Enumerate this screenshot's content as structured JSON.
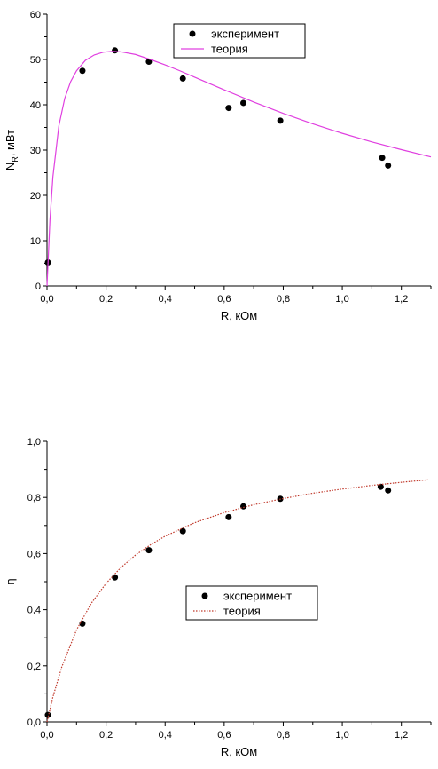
{
  "chart_data": [
    {
      "type": "scatter",
      "xlabel": "R, кОм",
      "ylabel": "N",
      "ylabel_sub": "R",
      "ylabel_unit": ", мВт",
      "xlim": [
        0,
        1.3
      ],
      "ylim": [
        0,
        60
      ],
      "xticks": [
        "0,0",
        "0,2",
        "0,4",
        "0,6",
        "0,8",
        "1,0",
        "1,2"
      ],
      "xtick_values": [
        0,
        0.2,
        0.4,
        0.6,
        0.8,
        1.0,
        1.2
      ],
      "yticks": [
        "0",
        "10",
        "20",
        "30",
        "40",
        "50",
        "60"
      ],
      "ytick_values": [
        0,
        10,
        20,
        30,
        40,
        50,
        60
      ],
      "legend_position": "top-right",
      "series": [
        {
          "name": "эксперимент",
          "kind": "scatter",
          "color": "#000000",
          "x": [
            0.003,
            0.12,
            0.23,
            0.345,
            0.46,
            0.615,
            0.665,
            0.79,
            1.135,
            1.155
          ],
          "y": [
            5.2,
            47.5,
            52.0,
            49.5,
            45.8,
            39.3,
            40.4,
            36.5,
            28.3,
            26.6
          ]
        },
        {
          "name": "теория",
          "kind": "line",
          "color": "#e040e0",
          "style": "solid",
          "x": [
            0,
            0.01,
            0.02,
            0.04,
            0.06,
            0.08,
            0.1,
            0.13,
            0.16,
            0.19,
            0.22,
            0.25,
            0.3,
            0.35,
            0.4,
            0.45,
            0.5,
            0.6,
            0.7,
            0.8,
            0.9,
            1.0,
            1.1,
            1.2,
            1.3
          ],
          "y": [
            0,
            14.6,
            24.1,
            35.3,
            41.4,
            45.1,
            47.5,
            49.8,
            51.0,
            51.6,
            51.8,
            51.7,
            51.1,
            50.0,
            48.8,
            47.5,
            46.1,
            43.3,
            40.6,
            38.1,
            35.8,
            33.7,
            31.8,
            30.1,
            28.5
          ]
        }
      ]
    },
    {
      "type": "scatter",
      "xlabel": "R, кОм",
      "ylabel": "η",
      "xlim": [
        0,
        1.3
      ],
      "ylim": [
        0,
        1.0
      ],
      "xticks": [
        "0,0",
        "0,2",
        "0,4",
        "0,6",
        "0,8",
        "1,0",
        "1,2"
      ],
      "xtick_values": [
        0,
        0.2,
        0.4,
        0.6,
        0.8,
        1.0,
        1.2
      ],
      "yticks": [
        "0,0",
        "0,2",
        "0,4",
        "0,6",
        "0,8",
        "1,0"
      ],
      "ytick_values": [
        0,
        0.2,
        0.4,
        0.6,
        0.8,
        1.0
      ],
      "legend_position": "center-right",
      "series": [
        {
          "name": "эксперимент",
          "kind": "scatter",
          "color": "#000000",
          "x": [
            0.003,
            0.12,
            0.23,
            0.345,
            0.46,
            0.615,
            0.665,
            0.79,
            1.13,
            1.155
          ],
          "y": [
            0.025,
            0.35,
            0.515,
            0.612,
            0.68,
            0.73,
            0.768,
            0.795,
            0.838,
            0.825
          ]
        },
        {
          "name": "теория",
          "kind": "line",
          "color": "#c0392b",
          "style": "dotted",
          "x": [
            0,
            0.02,
            0.05,
            0.1,
            0.15,
            0.2,
            0.25,
            0.3,
            0.35,
            0.4,
            0.5,
            0.6,
            0.7,
            0.8,
            0.9,
            1.0,
            1.1,
            1.2,
            1.29
          ],
          "y": [
            0.0,
            0.089,
            0.196,
            0.328,
            0.423,
            0.494,
            0.55,
            0.595,
            0.631,
            0.662,
            0.71,
            0.746,
            0.774,
            0.796,
            0.815,
            0.83,
            0.843,
            0.854,
            0.863
          ]
        }
      ]
    }
  ]
}
